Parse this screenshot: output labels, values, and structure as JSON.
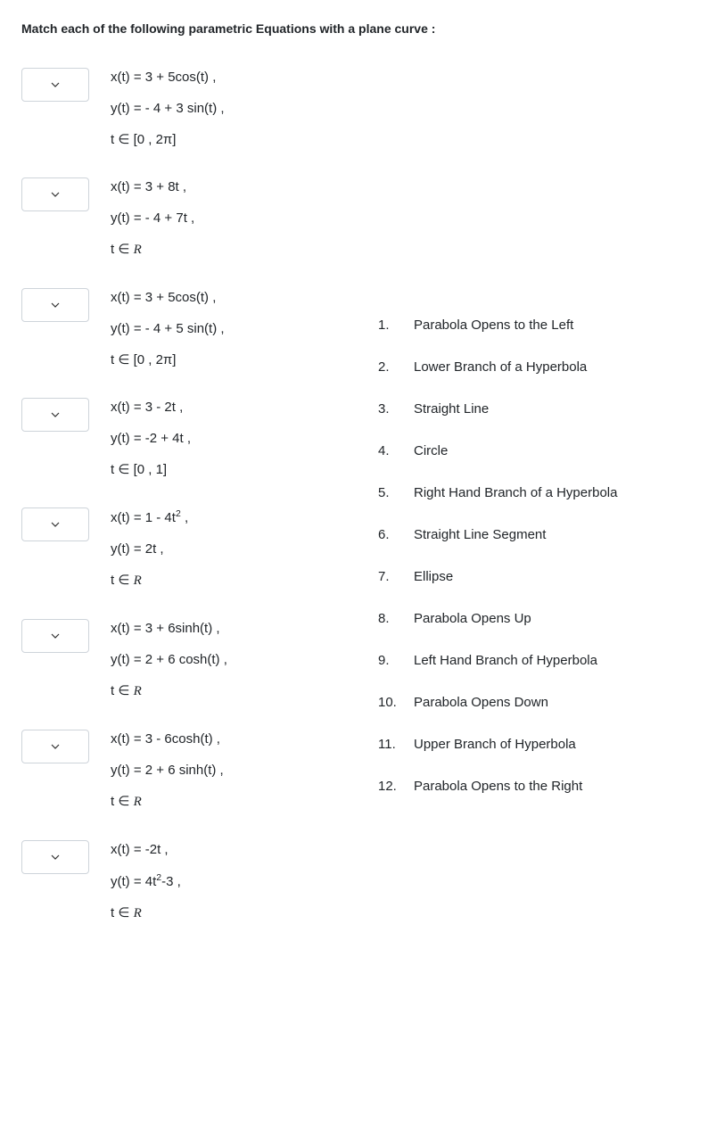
{
  "instruction": "Match each of the following parametric Equations with a plane curve :",
  "questions": [
    {
      "x": "x(t) = 3 + 5cos(t) ,",
      "y": "y(t) = - 4 + 3 sin(t) ,",
      "domain": "t ∈ [0 , 2π]"
    },
    {
      "x": "x(t) = 3 + 8t ,",
      "y": "y(t) = - 4 + 7t ,",
      "domain": "t ∈ ℛ"
    },
    {
      "x": "x(t) = 3 + 5cos(t) ,",
      "y": "y(t) = - 4 + 5 sin(t) ,",
      "domain": "t ∈ [0 , 2π]"
    },
    {
      "x": "x(t) = 3 - 2t ,",
      "y": "y(t) = -2 + 4t ,",
      "domain": "t ∈ [0 , 1]"
    },
    {
      "x_html": "x(t) = 1 - 4t<sup>2</sup> ,",
      "y": "y(t) = 2t ,",
      "domain": "t ∈ ℛ"
    },
    {
      "x": "x(t) = 3 + 6sinh(t) ,",
      "y": "y(t) = 2 + 6 cosh(t) ,",
      "domain": "t ∈ ℛ"
    },
    {
      "x": "x(t) = 3 - 6cosh(t) ,",
      "y": "y(t) = 2 + 6 sinh(t) ,",
      "domain": "t ∈ ℛ"
    },
    {
      "x": "x(t) = -2t ,",
      "y_html": "y(t) = 4t<sup>2</sup>-3 ,",
      "domain": "t ∈ ℛ"
    }
  ],
  "answers": [
    {
      "num": "1.",
      "text": "Parabola Opens to the Left"
    },
    {
      "num": "2.",
      "text": "Lower Branch of a Hyperbola"
    },
    {
      "num": "3.",
      "text": "Straight Line"
    },
    {
      "num": "4.",
      "text": "Circle"
    },
    {
      "num": "5.",
      "text": "Right Hand Branch of a Hyperbola"
    },
    {
      "num": "6.",
      "text": "Straight Line Segment"
    },
    {
      "num": "7.",
      "text": "Ellipse"
    },
    {
      "num": "8.",
      "text": "Parabola Opens Up"
    },
    {
      "num": "9.",
      "text": "Left Hand Branch of Hyperbola"
    },
    {
      "num": "10.",
      "text": "Parabola Opens Down"
    },
    {
      "num": "11.",
      "text": "Upper Branch of Hyperbola"
    },
    {
      "num": "12.",
      "text": "Parabola Opens to the Right"
    }
  ],
  "colors": {
    "text": "#212529",
    "border": "#ced4da",
    "background": "#ffffff",
    "chevron": "#303030"
  },
  "typography": {
    "base_fontsize": 15,
    "instruction_fontsize": 14,
    "instruction_weight": 700
  }
}
